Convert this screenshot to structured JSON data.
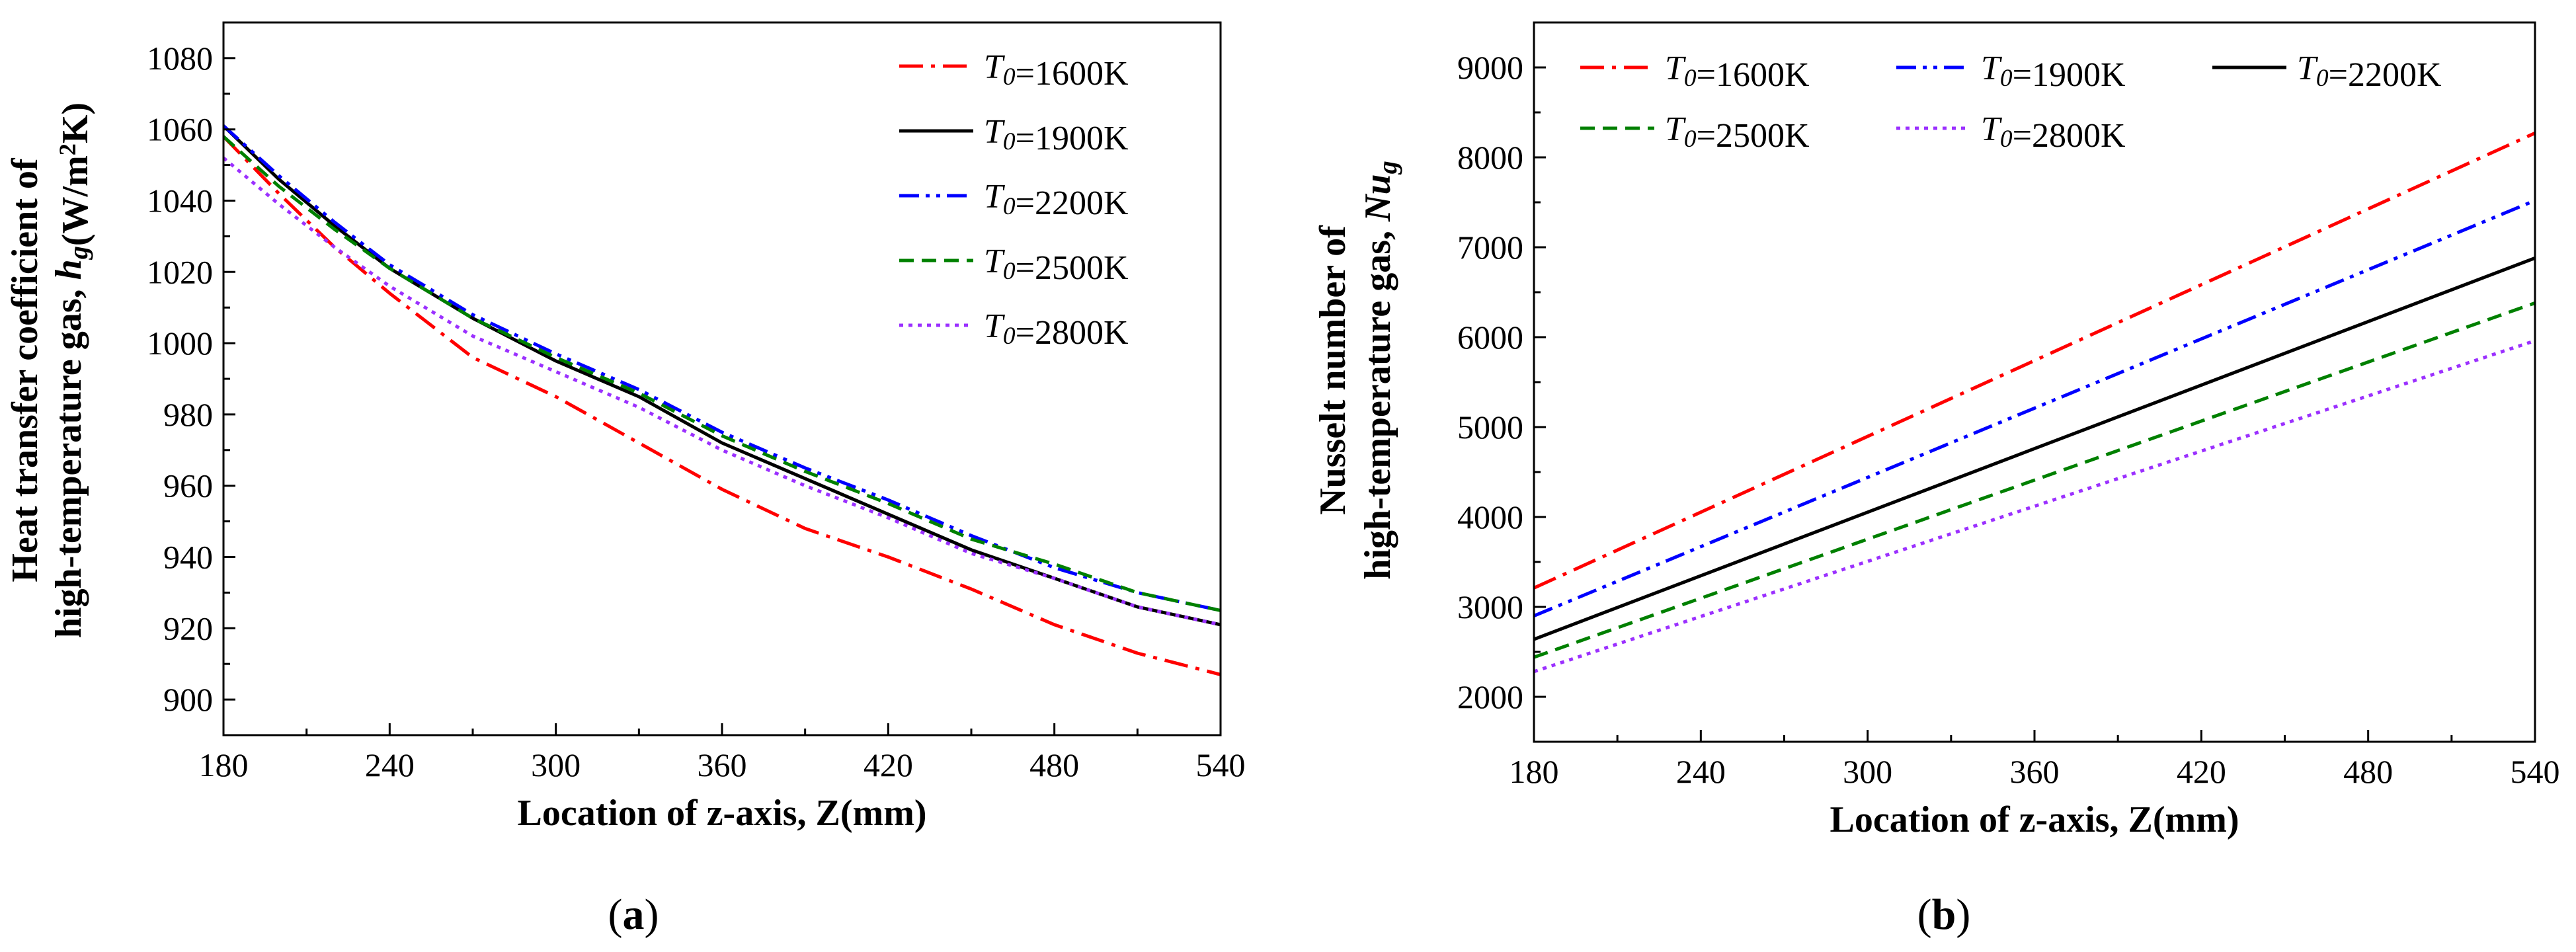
{
  "chart_data": [
    {
      "type": "line",
      "panel_label": "(a)",
      "xlabel": "Location of z-axis, Z(mm)",
      "ylabel_line1": "Heat transfer coefficient of",
      "ylabel_line2": "high-temperature gas, h_g(W/m²K)",
      "xlim": [
        180,
        540
      ],
      "ylim": [
        890,
        1090
      ],
      "xticks": [
        180,
        240,
        300,
        360,
        420,
        480,
        540
      ],
      "yticks": [
        900,
        920,
        940,
        960,
        980,
        1000,
        1020,
        1040,
        1060,
        1080
      ],
      "grid": false,
      "legend_position": "top-right",
      "legend_columns": 1,
      "series": [
        {
          "name": "T0=1600K",
          "color": "#ff0000",
          "dash": "dashdot",
          "x": [
            180,
            200,
            220,
            240,
            270,
            300,
            330,
            360,
            390,
            420,
            450,
            480,
            510,
            540
          ],
          "y": [
            1058,
            1042,
            1027,
            1014,
            996,
            985,
            972,
            959,
            948,
            940,
            931,
            921,
            913,
            907
          ]
        },
        {
          "name": "T0=1900K",
          "color": "#000000",
          "dash": "solid",
          "x": [
            180,
            200,
            220,
            240,
            270,
            300,
            330,
            360,
            390,
            420,
            450,
            480,
            510,
            540
          ],
          "y": [
            1061,
            1046,
            1033,
            1021,
            1007,
            995,
            985,
            972,
            962,
            952,
            942,
            934,
            926,
            921
          ]
        },
        {
          "name": "T0=2200K",
          "color": "#0000ff",
          "dash": "dashdotdot",
          "x": [
            180,
            200,
            220,
            240,
            270,
            300,
            330,
            360,
            390,
            420,
            450,
            480,
            510,
            540
          ],
          "y": [
            1061,
            1047,
            1034,
            1022,
            1008,
            997,
            987,
            975,
            965,
            956,
            946,
            937,
            930,
            925
          ]
        },
        {
          "name": "T0=2500K",
          "color": "#008000",
          "dash": "dash",
          "x": [
            180,
            200,
            220,
            240,
            270,
            300,
            330,
            360,
            390,
            420,
            450,
            480,
            510,
            540
          ],
          "y": [
            1058,
            1044,
            1032,
            1021,
            1007,
            996,
            986,
            974,
            964,
            955,
            945,
            938,
            930,
            925
          ]
        },
        {
          "name": "T0=2800K",
          "color": "#9b30ff",
          "dash": "dot",
          "x": [
            180,
            200,
            220,
            240,
            270,
            300,
            330,
            360,
            390,
            420,
            450,
            480,
            510,
            540
          ],
          "y": [
            1052,
            1039,
            1027,
            1016,
            1002,
            992,
            982,
            970,
            960,
            951,
            941,
            934,
            926,
            921
          ]
        }
      ]
    },
    {
      "type": "line",
      "panel_label": "(b)",
      "xlabel": "Location of z-axis, Z(mm)",
      "ylabel_line1": "Nusselt number of",
      "ylabel_line2": "high-temperature gas, Nu_g",
      "xlim": [
        180,
        540
      ],
      "ylim": [
        1500,
        9500
      ],
      "xticks": [
        180,
        240,
        300,
        360,
        420,
        480,
        540
      ],
      "yticks": [
        2000,
        3000,
        4000,
        5000,
        6000,
        7000,
        8000,
        9000
      ],
      "grid": false,
      "legend_position": "top",
      "legend_columns": 3,
      "series": [
        {
          "name": "T0=1600K",
          "color": "#ff0000",
          "dash": "dashdot",
          "x": [
            180,
            360,
            540
          ],
          "y": [
            3210,
            5740,
            8270
          ]
        },
        {
          "name": "T0=1900K",
          "color": "#0000ff",
          "dash": "dashdotdot",
          "x": [
            180,
            360,
            540
          ],
          "y": [
            2900,
            5210,
            7520
          ]
        },
        {
          "name": "T0=2200K",
          "color": "#000000",
          "dash": "solid",
          "x": [
            180,
            360,
            540
          ],
          "y": [
            2640,
            4760,
            6880
          ]
        },
        {
          "name": "T0=2500K",
          "color": "#008000",
          "dash": "dash",
          "x": [
            180,
            360,
            540
          ],
          "y": [
            2440,
            4410,
            6380
          ]
        },
        {
          "name": "T0=2800K",
          "color": "#9b30ff",
          "dash": "dot",
          "x": [
            180,
            360,
            540
          ],
          "y": [
            2280,
            4120,
            5960
          ]
        }
      ]
    }
  ]
}
